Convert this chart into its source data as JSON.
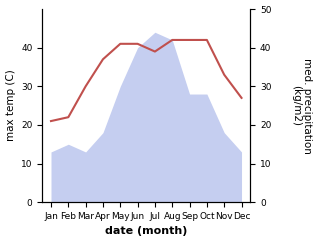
{
  "months": [
    "Jan",
    "Feb",
    "Mar",
    "Apr",
    "May",
    "Jun",
    "Jul",
    "Aug",
    "Sep",
    "Oct",
    "Nov",
    "Dec"
  ],
  "temperature": [
    21,
    22,
    30,
    37,
    41,
    41,
    39,
    42,
    42,
    42,
    33,
    27
  ],
  "precipitation": [
    13,
    15,
    13,
    18,
    30,
    40,
    44,
    42,
    28,
    28,
    18,
    13
  ],
  "temp_color": "#c0504d",
  "precip_fill_color": "#c5cef0",
  "ylabel_left": "max temp (C)",
  "ylabel_right": "med. precipitation\n(kg/m2)",
  "xlabel": "date (month)",
  "ylim_left": [
    0,
    50
  ],
  "ylim_right": [
    0,
    50
  ],
  "yticks_left": [
    0,
    10,
    20,
    30,
    40
  ],
  "yticks_right": [
    0,
    10,
    20,
    30,
    40,
    50
  ],
  "background_color": "#ffffff",
  "temp_linewidth": 1.5,
  "xlabel_fontsize": 8,
  "ylabel_fontsize": 7.5,
  "tick_fontsize": 6.5
}
